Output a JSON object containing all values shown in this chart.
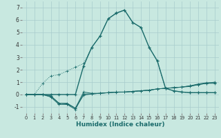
{
  "xlabel": "Humidex (Indice chaleur)",
  "bg_color": "#c8e8e0",
  "grid_color": "#a8cccc",
  "line_color": "#1a6b6b",
  "x_values": [
    0,
    1,
    2,
    3,
    4,
    5,
    6,
    7,
    8,
    9,
    10,
    11,
    12,
    13,
    14,
    15,
    16,
    17,
    18,
    19,
    20,
    21,
    22,
    23
  ],
  "series_solid_markers": [
    0.0,
    0.0,
    0.0,
    -0.2,
    -0.8,
    -0.8,
    -1.2,
    0.05,
    0.05,
    0.1,
    0.15,
    0.2,
    0.2,
    0.25,
    0.3,
    0.35,
    0.45,
    0.5,
    0.55,
    0.6,
    0.7,
    0.85,
    0.95,
    0.95
  ],
  "series_solid_markers2": [
    0.0,
    0.0,
    0.0,
    -0.15,
    -0.7,
    -0.75,
    -1.1,
    -0.05,
    0.05,
    0.1,
    0.15,
    0.2,
    0.2,
    0.25,
    0.3,
    0.35,
    0.45,
    0.5,
    0.55,
    0.6,
    0.7,
    0.8,
    0.9,
    0.9
  ],
  "series_main": [
    0.0,
    0.0,
    0.0,
    -0.1,
    -0.7,
    -0.7,
    -1.1,
    0.2,
    0.1,
    0.1,
    0.15,
    0.18,
    0.2,
    0.25,
    0.3,
    0.35,
    0.45,
    0.5,
    0.55,
    0.6,
    0.65,
    0.8,
    0.9,
    1.0
  ],
  "series_peak": [
    0.0,
    0.0,
    0.0,
    0.0,
    0.0,
    0.0,
    0.0,
    2.3,
    3.8,
    4.7,
    6.1,
    6.55,
    6.8,
    5.8,
    5.4,
    3.8,
    2.7,
    0.5,
    0.3,
    0.2,
    0.15,
    0.15,
    0.15,
    0.15
  ],
  "series_dotted": [
    0.0,
    0.0,
    0.9,
    1.5,
    1.6,
    1.9,
    2.2,
    2.5,
    3.8,
    4.7,
    6.1,
    6.6,
    6.8,
    5.8,
    5.4,
    3.8,
    2.7,
    0.5,
    0.3,
    0.2,
    0.15,
    0.15,
    0.15,
    0.15
  ],
  "ylim": [
    -1.5,
    7.5
  ],
  "xlim": [
    -0.5,
    23.5
  ],
  "yticks": [
    -1,
    0,
    1,
    2,
    3,
    4,
    5,
    6,
    7
  ],
  "xticks": [
    0,
    1,
    2,
    3,
    4,
    5,
    6,
    7,
    8,
    9,
    10,
    11,
    12,
    13,
    14,
    15,
    16,
    17,
    18,
    19,
    20,
    21,
    22,
    23
  ]
}
